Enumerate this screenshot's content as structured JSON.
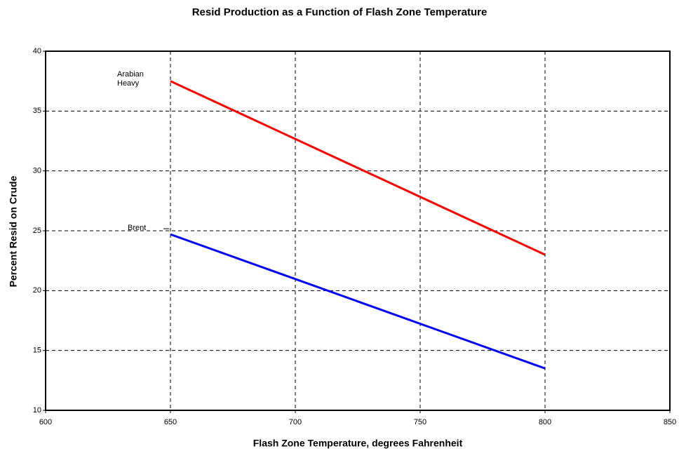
{
  "chart_data": {
    "type": "line",
    "title": "Resid Production as a Function of Flash Zone Temperature",
    "x_label": "Flash Zone Temperature, degrees Fahrenheit",
    "y_label": "Percent Resid on Crude",
    "x": [
      650,
      800
    ],
    "series": [
      {
        "name": "Arabian Heavy",
        "color": "#ff0000",
        "values": [
          37.5,
          23
        ]
      },
      {
        "name": "Brent",
        "color": "#0000ff",
        "values": [
          24.7,
          13.5
        ]
      }
    ],
    "xlim": [
      600,
      850
    ],
    "xticks": [
      600,
      650,
      700,
      750,
      800,
      850
    ],
    "ylim": [
      10,
      40
    ],
    "yticks": [
      10,
      15,
      20,
      25,
      30,
      35,
      40
    ],
    "grid": true
  }
}
